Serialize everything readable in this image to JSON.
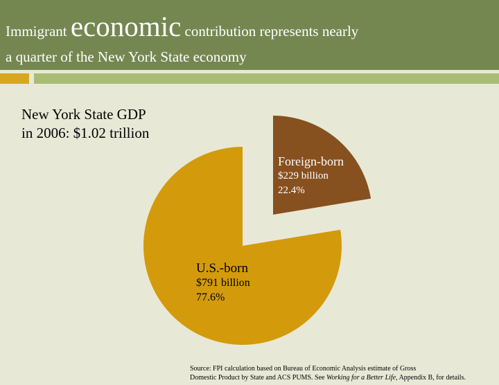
{
  "header": {
    "title_prefix": "Immigrant",
    "title_emphasis": "economic",
    "title_suffix": "contribution represents nearly",
    "title_line2": "a quarter of the New York State economy"
  },
  "subtitle": {
    "line1": "New York State GDP",
    "line2": "in 2006: $1.02 trillion"
  },
  "source": {
    "line1": "Source: FPI calculation based on Bureau of Economic Analysis estimate of Gross",
    "line2_prefix": "Domestic Product by State and ACS PUMS. See",
    "line2_italic": "Working for a Better Life",
    "line2_suffix": ", Appendix B, for details."
  },
  "colors": {
    "header_bg": "#748750",
    "foreign_born": "#87501f",
    "us_born": "#d39a0c"
  },
  "chart_data": {
    "type": "pie",
    "title": "",
    "exploded": "Foreign-born",
    "slices": [
      {
        "name": "Foreign-born",
        "amount": "$229 billion",
        "percent_label": "22.4%",
        "value": 22.4,
        "color": "#87501f"
      },
      {
        "name": "U.S.-born",
        "amount": "$791 billion",
        "percent_label": "77.6%",
        "value": 77.6,
        "color": "#d39a0c"
      }
    ]
  }
}
